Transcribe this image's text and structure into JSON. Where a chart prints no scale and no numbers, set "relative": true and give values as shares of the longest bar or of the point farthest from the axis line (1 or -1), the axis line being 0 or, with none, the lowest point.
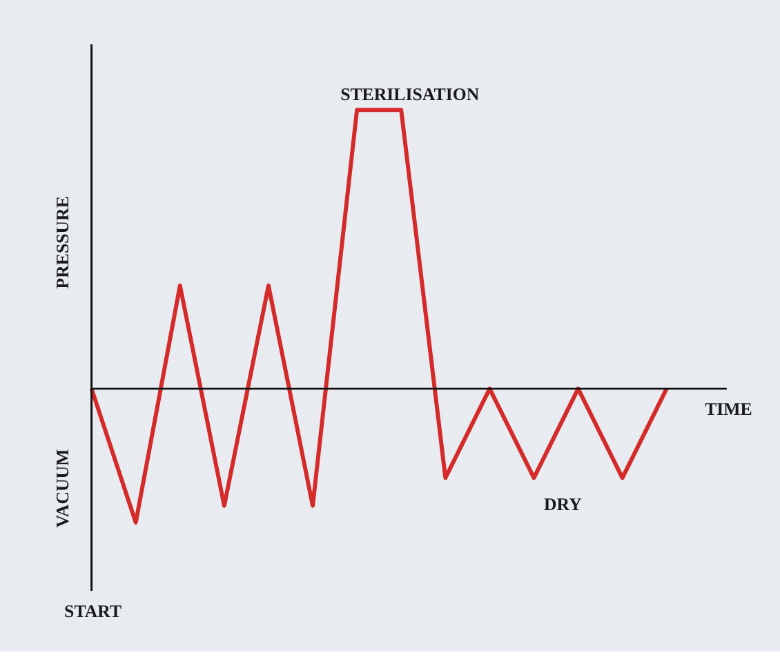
{
  "chart_data": {
    "type": "line",
    "relative": true,
    "xlabel": "TIME",
    "ylabel": "PRESSURE",
    "categories": [
      null,
      null,
      null,
      null,
      null,
      null,
      null,
      null,
      null,
      null,
      null,
      null,
      null,
      null
    ],
    "series": [
      {
        "color": "#d42a2a",
        "values": [
          0,
          -0.48,
          0.37,
          -0.42,
          0.37,
          -0.42,
          1,
          1,
          -0.32,
          0,
          -0.32,
          0,
          -0.32,
          0
        ]
      }
    ],
    "annotations": [
      "VACUUM",
      "START",
      "STERILISATION",
      "DRY"
    ],
    "grid": false,
    "marker": "none",
    "line_style": "solid"
  }
}
